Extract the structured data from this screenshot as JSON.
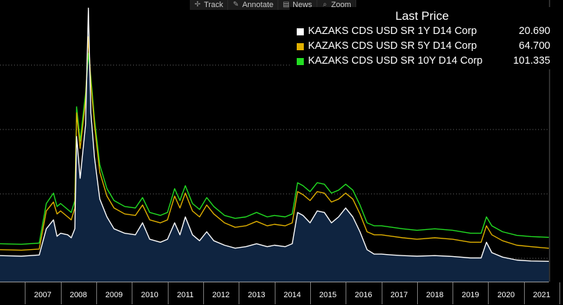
{
  "toolbar": {
    "items": [
      {
        "label": "Track",
        "icon": "crosshair-icon",
        "glyph": "✢"
      },
      {
        "label": "Annotate",
        "icon": "pencil-icon",
        "glyph": "✎"
      },
      {
        "label": "News",
        "icon": "news-icon",
        "glyph": "▤"
      },
      {
        "label": "Zoom",
        "icon": "magnifier-icon",
        "glyph": "⌕"
      }
    ]
  },
  "chart_data": {
    "type": "line",
    "legend_title": "Last Price",
    "legend_placement": "top-right",
    "x_ticks": [
      "2007",
      "2008",
      "2009",
      "2010",
      "2011",
      "2012",
      "2013",
      "2014",
      "2015",
      "2016",
      "2017",
      "2018",
      "2019",
      "2020",
      "2021"
    ],
    "x_range": [
      2006.3,
      2021.7
    ],
    "y_range": [
      0,
      880
    ],
    "grid": "horizontal dotted",
    "series": [
      {
        "name": "KAZAKS CDS USD SR 1Y D14 Corp",
        "last_price": "20.690",
        "color": "#ffffff",
        "fill": "#0f2440",
        "points": [
          [
            2006.3,
            40
          ],
          [
            2006.9,
            38
          ],
          [
            2007.4,
            42
          ],
          [
            2007.6,
            130
          ],
          [
            2007.8,
            160
          ],
          [
            2007.9,
            105
          ],
          [
            2008.0,
            115
          ],
          [
            2008.2,
            110
          ],
          [
            2008.3,
            100
          ],
          [
            2008.4,
            130
          ],
          [
            2008.45,
            440
          ],
          [
            2008.55,
            300
          ],
          [
            2008.7,
            480
          ],
          [
            2008.78,
            872
          ],
          [
            2008.85,
            520
          ],
          [
            2008.95,
            370
          ],
          [
            2009.1,
            230
          ],
          [
            2009.3,
            170
          ],
          [
            2009.5,
            130
          ],
          [
            2009.8,
            115
          ],
          [
            2010.1,
            110
          ],
          [
            2010.3,
            150
          ],
          [
            2010.5,
            95
          ],
          [
            2010.8,
            85
          ],
          [
            2011.0,
            95
          ],
          [
            2011.2,
            150
          ],
          [
            2011.35,
            110
          ],
          [
            2011.5,
            170
          ],
          [
            2011.7,
            110
          ],
          [
            2011.9,
            90
          ],
          [
            2012.1,
            120
          ],
          [
            2012.3,
            90
          ],
          [
            2012.6,
            75
          ],
          [
            2012.9,
            65
          ],
          [
            2013.2,
            70
          ],
          [
            2013.5,
            80
          ],
          [
            2013.8,
            70
          ],
          [
            2014.0,
            75
          ],
          [
            2014.3,
            70
          ],
          [
            2014.5,
            80
          ],
          [
            2014.65,
            185
          ],
          [
            2014.8,
            175
          ],
          [
            2015.0,
            150
          ],
          [
            2015.2,
            190
          ],
          [
            2015.4,
            185
          ],
          [
            2015.6,
            150
          ],
          [
            2015.8,
            170
          ],
          [
            2016.0,
            200
          ],
          [
            2016.2,
            170
          ],
          [
            2016.4,
            120
          ],
          [
            2016.6,
            60
          ],
          [
            2016.8,
            45
          ],
          [
            2017.0,
            45
          ],
          [
            2017.3,
            42
          ],
          [
            2017.6,
            40
          ],
          [
            2018.0,
            38
          ],
          [
            2018.5,
            40
          ],
          [
            2019.0,
            37
          ],
          [
            2019.5,
            32
          ],
          [
            2019.8,
            32
          ],
          [
            2019.95,
            85
          ],
          [
            2020.1,
            50
          ],
          [
            2020.4,
            35
          ],
          [
            2020.8,
            25
          ],
          [
            2021.2,
            22
          ],
          [
            2021.7,
            20.69
          ]
        ]
      },
      {
        "name": "KAZAKS CDS USD SR 5Y D14 Corp",
        "last_price": "64.700",
        "color": "#e0b000",
        "points": [
          [
            2006.3,
            60
          ],
          [
            2006.9,
            58
          ],
          [
            2007.4,
            62
          ],
          [
            2007.6,
            190
          ],
          [
            2007.8,
            220
          ],
          [
            2007.9,
            180
          ],
          [
            2008.0,
            190
          ],
          [
            2008.2,
            170
          ],
          [
            2008.3,
            160
          ],
          [
            2008.4,
            200
          ],
          [
            2008.45,
            520
          ],
          [
            2008.55,
            400
          ],
          [
            2008.7,
            560
          ],
          [
            2008.78,
            775
          ],
          [
            2008.85,
            620
          ],
          [
            2008.95,
            480
          ],
          [
            2009.1,
            320
          ],
          [
            2009.3,
            240
          ],
          [
            2009.5,
            200
          ],
          [
            2009.8,
            180
          ],
          [
            2010.1,
            175
          ],
          [
            2010.3,
            210
          ],
          [
            2010.5,
            160
          ],
          [
            2010.8,
            150
          ],
          [
            2011.0,
            160
          ],
          [
            2011.2,
            240
          ],
          [
            2011.35,
            200
          ],
          [
            2011.5,
            250
          ],
          [
            2011.7,
            190
          ],
          [
            2011.9,
            170
          ],
          [
            2012.1,
            210
          ],
          [
            2012.3,
            180
          ],
          [
            2012.6,
            150
          ],
          [
            2012.9,
            135
          ],
          [
            2013.2,
            140
          ],
          [
            2013.5,
            155
          ],
          [
            2013.8,
            140
          ],
          [
            2014.0,
            145
          ],
          [
            2014.3,
            140
          ],
          [
            2014.5,
            150
          ],
          [
            2014.65,
            255
          ],
          [
            2014.8,
            245
          ],
          [
            2015.0,
            225
          ],
          [
            2015.2,
            255
          ],
          [
            2015.4,
            250
          ],
          [
            2015.6,
            220
          ],
          [
            2015.8,
            230
          ],
          [
            2016.0,
            250
          ],
          [
            2016.2,
            230
          ],
          [
            2016.4,
            180
          ],
          [
            2016.6,
            120
          ],
          [
            2016.8,
            110
          ],
          [
            2017.0,
            110
          ],
          [
            2017.3,
            105
          ],
          [
            2017.6,
            100
          ],
          [
            2018.0,
            95
          ],
          [
            2018.5,
            100
          ],
          [
            2019.0,
            95
          ],
          [
            2019.5,
            85
          ],
          [
            2019.8,
            85
          ],
          [
            2019.95,
            140
          ],
          [
            2020.1,
            110
          ],
          [
            2020.4,
            90
          ],
          [
            2020.8,
            75
          ],
          [
            2021.2,
            70
          ],
          [
            2021.7,
            64.7
          ]
        ]
      },
      {
        "name": "KAZAKS CDS USD SR 10Y D14 Corp",
        "last_price": "101.335",
        "color": "#22dd22",
        "points": [
          [
            2006.3,
            80
          ],
          [
            2006.9,
            78
          ],
          [
            2007.4,
            82
          ],
          [
            2007.6,
            215
          ],
          [
            2007.8,
            250
          ],
          [
            2007.9,
            205
          ],
          [
            2008.0,
            215
          ],
          [
            2008.2,
            195
          ],
          [
            2008.3,
            185
          ],
          [
            2008.4,
            225
          ],
          [
            2008.45,
            540
          ],
          [
            2008.55,
            425
          ],
          [
            2008.7,
            585
          ],
          [
            2008.78,
            720
          ],
          [
            2008.85,
            640
          ],
          [
            2008.95,
            500
          ],
          [
            2009.1,
            345
          ],
          [
            2009.3,
            265
          ],
          [
            2009.5,
            225
          ],
          [
            2009.8,
            205
          ],
          [
            2010.1,
            200
          ],
          [
            2010.3,
            235
          ],
          [
            2010.5,
            185
          ],
          [
            2010.8,
            175
          ],
          [
            2011.0,
            185
          ],
          [
            2011.2,
            265
          ],
          [
            2011.35,
            225
          ],
          [
            2011.5,
            275
          ],
          [
            2011.7,
            215
          ],
          [
            2011.9,
            195
          ],
          [
            2012.1,
            235
          ],
          [
            2012.3,
            205
          ],
          [
            2012.6,
            175
          ],
          [
            2012.9,
            165
          ],
          [
            2013.2,
            170
          ],
          [
            2013.5,
            185
          ],
          [
            2013.8,
            170
          ],
          [
            2014.0,
            175
          ],
          [
            2014.3,
            170
          ],
          [
            2014.5,
            180
          ],
          [
            2014.65,
            285
          ],
          [
            2014.8,
            275
          ],
          [
            2015.0,
            255
          ],
          [
            2015.2,
            285
          ],
          [
            2015.4,
            280
          ],
          [
            2015.6,
            250
          ],
          [
            2015.8,
            260
          ],
          [
            2016.0,
            280
          ],
          [
            2016.2,
            260
          ],
          [
            2016.4,
            210
          ],
          [
            2016.6,
            150
          ],
          [
            2016.8,
            140
          ],
          [
            2017.0,
            140
          ],
          [
            2017.3,
            135
          ],
          [
            2017.6,
            130
          ],
          [
            2018.0,
            125
          ],
          [
            2018.5,
            130
          ],
          [
            2019.0,
            125
          ],
          [
            2019.5,
            115
          ],
          [
            2019.8,
            115
          ],
          [
            2019.95,
            170
          ],
          [
            2020.1,
            140
          ],
          [
            2020.4,
            120
          ],
          [
            2020.8,
            108
          ],
          [
            2021.2,
            104
          ],
          [
            2021.7,
            101.335
          ]
        ]
      }
    ]
  }
}
